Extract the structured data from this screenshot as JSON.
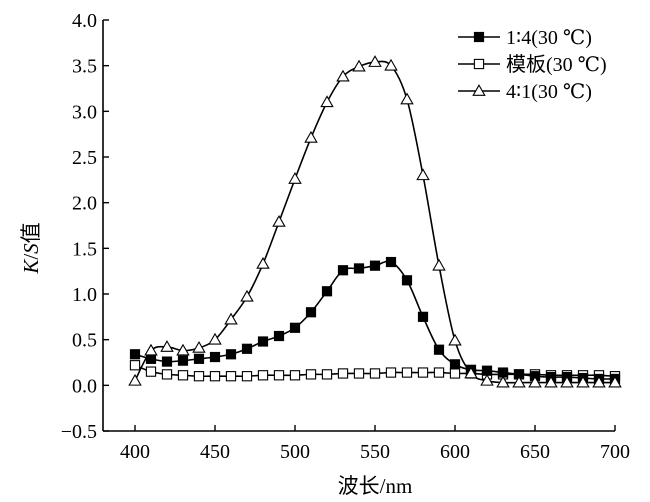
{
  "chart_data": {
    "type": "line",
    "title": "",
    "xlabel": "波长/nm",
    "ylabel": {
      "k": "K",
      "sep": "/",
      "s": "S",
      "suffix": "值"
    },
    "xlim": [
      400,
      700
    ],
    "ylim": [
      -0.5,
      4.0
    ],
    "xticks": [
      400,
      450,
      500,
      550,
      600,
      650,
      700
    ],
    "yticks": [
      "−0.5",
      "0.0",
      "0.5",
      "1.0",
      "1.5",
      "2.0",
      "2.5",
      "3.0",
      "3.5",
      "4.0"
    ],
    "ytick_values": [
      -0.5,
      0.0,
      0.5,
      1.0,
      1.5,
      2.0,
      2.5,
      3.0,
      3.5,
      4.0
    ],
    "grid": false,
    "legend_position": "top-right",
    "series": [
      {
        "name": "1∶4(30 ℃)",
        "marker": "filled-square",
        "color": "#000000",
        "x": [
          400,
          410,
          420,
          430,
          440,
          450,
          460,
          470,
          480,
          490,
          500,
          510,
          520,
          530,
          540,
          550,
          560,
          570,
          580,
          590,
          600,
          610,
          620,
          630,
          640,
          650,
          660,
          670,
          680,
          690,
          700
        ],
        "y": [
          0.34,
          0.29,
          0.26,
          0.27,
          0.29,
          0.31,
          0.34,
          0.4,
          0.48,
          0.54,
          0.63,
          0.8,
          1.03,
          1.26,
          1.28,
          1.31,
          1.35,
          1.15,
          0.75,
          0.39,
          0.23,
          0.17,
          0.16,
          0.14,
          0.12,
          0.1,
          0.09,
          0.09,
          0.08,
          0.07,
          0.07
        ]
      },
      {
        "name": "模板(30 ℃)",
        "marker": "open-square",
        "color": "#000000",
        "x": [
          400,
          410,
          420,
          430,
          440,
          450,
          460,
          470,
          480,
          490,
          500,
          510,
          520,
          530,
          540,
          550,
          560,
          570,
          580,
          590,
          600,
          610,
          620,
          630,
          640,
          650,
          660,
          670,
          680,
          690,
          700
        ],
        "y": [
          0.22,
          0.15,
          0.12,
          0.11,
          0.1,
          0.1,
          0.1,
          0.1,
          0.11,
          0.11,
          0.11,
          0.12,
          0.12,
          0.13,
          0.13,
          0.13,
          0.14,
          0.14,
          0.14,
          0.14,
          0.13,
          0.13,
          0.12,
          0.12,
          0.12,
          0.12,
          0.11,
          0.11,
          0.11,
          0.11,
          0.1
        ]
      },
      {
        "name": "4∶1(30 ℃)",
        "marker": "open-triangle",
        "color": "#000000",
        "x": [
          400,
          410,
          420,
          430,
          440,
          450,
          460,
          470,
          480,
          490,
          500,
          510,
          520,
          530,
          540,
          550,
          560,
          570,
          580,
          590,
          600,
          610,
          620,
          630,
          640,
          650,
          660,
          670,
          680,
          690,
          700
        ],
        "y": [
          0.05,
          0.38,
          0.42,
          0.38,
          0.41,
          0.5,
          0.72,
          0.97,
          1.33,
          1.79,
          2.26,
          2.71,
          3.1,
          3.38,
          3.49,
          3.54,
          3.5,
          3.13,
          2.3,
          1.31,
          0.49,
          0.13,
          0.05,
          0.03,
          0.03,
          0.03,
          0.03,
          0.03,
          0.03,
          0.03,
          0.03
        ]
      }
    ]
  }
}
